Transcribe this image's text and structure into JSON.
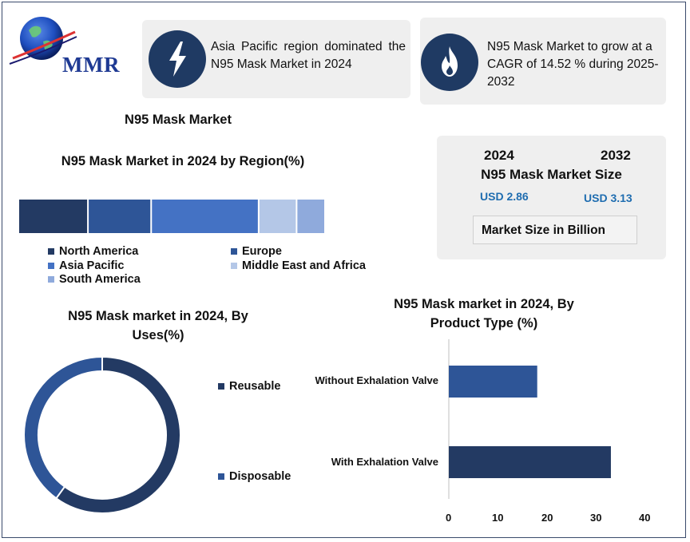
{
  "brand": {
    "name": "MMR"
  },
  "highlights": [
    {
      "icon": "lightning-icon",
      "text": "Asia Pacific region dominated the N95 Mask Market in 2024"
    },
    {
      "icon": "flame-icon",
      "text": "N95 Mask Market to grow at a CAGR of 14.52 % during 2025-2032"
    }
  ],
  "main_title": "N95 Mask Market",
  "market_size": {
    "year_start": "2024",
    "year_end": "2032",
    "title": "N95 Mask Market Size",
    "value_start": "USD 2.86",
    "value_end": "USD 3.13",
    "unit_note": "Market Size in Billion"
  },
  "colors": {
    "navy": "#233a63",
    "blue": "#2e5597",
    "mid_blue": "#4472c4",
    "pale_blue": "#b4c7e7",
    "light_blue": "#8faadc",
    "card_bg": "#efefef",
    "value_blue": "#1f6db0"
  },
  "chart_data": [
    {
      "type": "bar",
      "orientation": "stacked-horizontal",
      "title": "N95 Mask Market in 2024 by Region(%)",
      "categories": [
        "North America",
        "Europe",
        "Asia Pacific",
        "Middle East and Africa",
        "South America"
      ],
      "values": [
        22,
        20,
        34,
        12,
        9
      ],
      "colors": [
        "#233a63",
        "#2e5597",
        "#4472c4",
        "#b4c7e7",
        "#8faadc"
      ],
      "legend": "bottom",
      "legend_labels": [
        "North America",
        "Europe",
        "Asia Pacific",
        "Middle East and Africa",
        "South America"
      ]
    },
    {
      "type": "pie",
      "variant": "donut",
      "title": "N95 Mask market in 2024, By Uses(%)",
      "categories": [
        "Reusable",
        "Disposable"
      ],
      "values": [
        60,
        40
      ],
      "colors": [
        "#233a63",
        "#2e5597"
      ],
      "legend": "right"
    },
    {
      "type": "bar",
      "orientation": "horizontal",
      "title": "N95 Mask market in 2024, By Product Type (%)",
      "categories": [
        "Without Exhalation Valve",
        "With Exhalation Valve"
      ],
      "values": [
        18,
        33
      ],
      "colors": [
        "#2e5597",
        "#233a63"
      ],
      "xlim": [
        0,
        40
      ],
      "xticks": [
        "0",
        "10",
        "20",
        "30",
        "40"
      ],
      "grid": false
    }
  ]
}
